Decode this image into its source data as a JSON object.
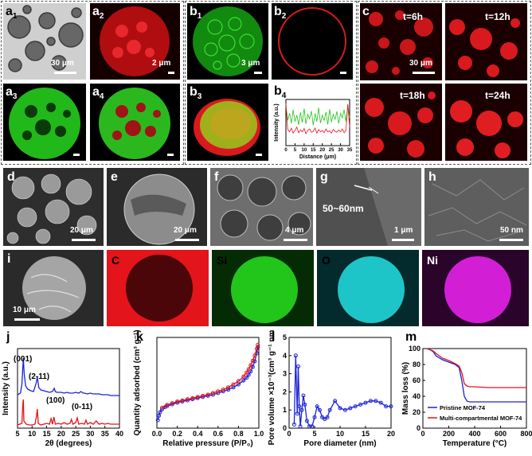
{
  "panels": {
    "a1": {
      "label": "a",
      "sub": "1",
      "scale": "30 μm"
    },
    "a2": {
      "label": "a",
      "sub": "2",
      "scale": "2 μm"
    },
    "a3": {
      "label": "a",
      "sub": "3"
    },
    "a4": {
      "label": "a",
      "sub": "4"
    },
    "b1": {
      "label": "b",
      "sub": "1",
      "scale": "3 μm"
    },
    "b2": {
      "label": "b",
      "sub": "2"
    },
    "b3": {
      "label": "b",
      "sub": "3"
    },
    "b4": {
      "label": "b",
      "sub": "4"
    },
    "c": {
      "label": "c",
      "scale": "30 μm",
      "times": [
        "t=6h",
        "t=12h",
        "t=18h",
        "t=24h"
      ]
    },
    "d": {
      "label": "d",
      "scale": "20 μm"
    },
    "e": {
      "label": "e",
      "scale": "20 μm"
    },
    "f": {
      "label": "f",
      "scale": "4 μm"
    },
    "g": {
      "label": "g",
      "scale": "1 μm",
      "annotation": "50~60nm"
    },
    "h": {
      "label": "h",
      "scale": "50 nm"
    },
    "i": {
      "label": "i",
      "scale": "10 μm"
    },
    "eds": [
      {
        "element": "C",
        "color": "#e3141a",
        "bg": "#3a0505",
        "text_color": "#000000"
      },
      {
        "element": "Si",
        "color": "#22c51a",
        "bg": "#042b04",
        "text_color": "#000000"
      },
      {
        "element": "O",
        "color": "#1ec5c8",
        "bg": "#032a2c",
        "text_color": "#000000"
      },
      {
        "element": "Ni",
        "color": "#d21fd6",
        "bg": "#2a042b",
        "text_color": "#ffffff"
      }
    ],
    "j": {
      "label": "j"
    },
    "k": {
      "label": "k"
    },
    "l": {
      "label": "l"
    },
    "m": {
      "label": "m"
    }
  },
  "chart_data": [
    {
      "id": "b4",
      "type": "line",
      "xlabel": "Distance (μm)",
      "ylabel": "Intensity (a.u.)",
      "xlim": [
        0,
        35
      ],
      "xticks": [
        0,
        5,
        10,
        15,
        20,
        25,
        30,
        35
      ],
      "ylim": [
        0,
        100
      ],
      "series": [
        {
          "color": "#22c51a",
          "x": [
            0,
            1,
            2,
            3,
            4,
            5,
            6,
            7,
            8,
            9,
            10,
            11,
            12,
            13,
            14,
            15,
            16,
            17,
            18,
            19,
            20,
            21,
            22,
            23,
            24,
            25,
            26,
            27,
            28,
            29,
            30,
            31,
            32,
            33,
            34,
            35
          ],
          "y": [
            85,
            55,
            70,
            48,
            78,
            52,
            66,
            45,
            72,
            50,
            80,
            47,
            68,
            58,
            75,
            44,
            70,
            52,
            82,
            49,
            66,
            55,
            73,
            46,
            79,
            51,
            68,
            57,
            74,
            48,
            70,
            60,
            78,
            52,
            88,
            60
          ]
        },
        {
          "color": "#e3141a",
          "x": [
            0,
            1,
            2,
            3,
            4,
            5,
            6,
            7,
            8,
            9,
            10,
            11,
            12,
            13,
            14,
            15,
            16,
            17,
            18,
            19,
            20,
            21,
            22,
            23,
            24,
            25,
            26,
            27,
            28,
            29,
            30,
            31,
            32,
            33,
            34,
            35
          ],
          "y": [
            92,
            35,
            30,
            38,
            27,
            33,
            40,
            28,
            34,
            30,
            37,
            26,
            33,
            36,
            29,
            31,
            38,
            27,
            35,
            30,
            33,
            28,
            36,
            30,
            32,
            27,
            35,
            31,
            29,
            34,
            30,
            36,
            28,
            33,
            90,
            40
          ]
        }
      ]
    },
    {
      "id": "j",
      "type": "line",
      "xlabel": "2θ (degrees)",
      "ylabel": "Intensity (a.u.)",
      "xlim": [
        5,
        40
      ],
      "xticks": [
        5,
        10,
        15,
        20,
        25,
        30,
        35,
        40
      ],
      "ylim": [
        0,
        10
      ],
      "annotations": [
        "(001)",
        "(2-11)",
        "(100)",
        "(0-11)"
      ],
      "series": [
        {
          "color": "#1a23d6",
          "x": [
            5,
            6,
            6.5,
            6.8,
            7,
            7.3,
            7.8,
            8.5,
            9.5,
            10.5,
            11.3,
            11.8,
            12.3,
            13,
            14,
            15,
            16,
            17,
            17.6,
            18,
            18.5,
            19,
            20,
            21,
            22,
            23,
            24,
            25,
            26,
            26.8,
            27.5,
            28,
            29,
            30,
            31,
            32,
            33,
            34,
            35,
            36,
            37,
            38,
            39,
            40
          ],
          "y": [
            4.2,
            4.4,
            5.5,
            7.5,
            8.8,
            6.8,
            5.3,
            4.9,
            4.7,
            4.6,
            5.5,
            6.4,
            5.1,
            4.8,
            4.7,
            4.6,
            4.5,
            4.6,
            5.0,
            4.6,
            4.5,
            4.5,
            4.5,
            4.4,
            4.5,
            4.4,
            4.4,
            4.5,
            4.4,
            4.6,
            4.4,
            4.4,
            4.3,
            4.4,
            4.3,
            4.3,
            4.3,
            4.2,
            4.2,
            4.2,
            4.1,
            4.1,
            4.1,
            4.1
          ]
        },
        {
          "color": "#e3141a",
          "x": [
            5,
            6.5,
            6.8,
            7,
            7.2,
            8,
            9,
            10,
            11,
            11.5,
            11.8,
            12.1,
            13,
            14,
            15,
            16,
            16.5,
            17,
            17.5,
            18,
            19,
            20,
            21,
            22,
            23,
            23.5,
            24,
            25,
            25.5,
            26,
            27,
            28,
            28.5,
            29,
            30,
            31,
            32,
            33,
            34,
            35,
            36,
            37,
            38,
            39,
            40
          ],
          "y": [
            0.4,
            0.6,
            3.0,
            3.6,
            0.9,
            0.5,
            0.4,
            0.4,
            0.5,
            1.5,
            2.4,
            0.6,
            0.4,
            0.5,
            0.6,
            0.5,
            1.2,
            0.5,
            1.4,
            0.5,
            0.6,
            0.5,
            0.7,
            0.5,
            0.6,
            1.1,
            0.5,
            0.7,
            1.3,
            0.5,
            0.6,
            0.5,
            1.0,
            0.5,
            0.7,
            0.5,
            0.9,
            0.5,
            0.6,
            0.5,
            0.6,
            0.5,
            0.5,
            0.5,
            0.5
          ]
        }
      ]
    },
    {
      "id": "k",
      "type": "line",
      "xlabel": "Relative pressure (P/P₀)",
      "ylabel": "Quantity adsorbed (cm³ g⁻¹)",
      "xlim": [
        0,
        1.0
      ],
      "xticks": [
        0.0,
        0.2,
        0.4,
        0.6,
        0.8,
        1.0
      ],
      "ylim": [
        0,
        160
      ],
      "series": [
        {
          "color": "#1a23d6",
          "marker": "circle",
          "x": [
            0.01,
            0.02,
            0.03,
            0.05,
            0.08,
            0.1,
            0.15,
            0.2,
            0.25,
            0.3,
            0.35,
            0.4,
            0.45,
            0.5,
            0.55,
            0.6,
            0.65,
            0.7,
            0.75,
            0.8,
            0.85,
            0.88,
            0.9,
            0.92,
            0.94,
            0.96,
            0.98,
            0.99
          ],
          "y": [
            14,
            22,
            28,
            33,
            37,
            39,
            42,
            45,
            47,
            49,
            51,
            53,
            55,
            57,
            59,
            62,
            65,
            68,
            72,
            77,
            84,
            89,
            94,
            100,
            108,
            118,
            132,
            143
          ]
        },
        {
          "color": "#e3141a",
          "marker": "circle",
          "x": [
            0.99,
            0.98,
            0.96,
            0.94,
            0.92,
            0.9,
            0.88,
            0.85,
            0.8,
            0.75,
            0.7,
            0.65,
            0.6,
            0.55,
            0.5,
            0.45,
            0.4,
            0.35,
            0.3,
            0.25,
            0.2,
            0.15,
            0.1,
            0.05
          ],
          "y": [
            147,
            140,
            128,
            119,
            111,
            104,
            98,
            91,
            83,
            77,
            72,
            68,
            65,
            62,
            59,
            57,
            55,
            53,
            51,
            49,
            47,
            44,
            41,
            36
          ]
        }
      ]
    },
    {
      "id": "l",
      "type": "line",
      "xlabel": "Pore diameter (nm)",
      "ylabel": "Pore volume ×10⁻³(cm³ g⁻¹ nm⁻¹)",
      "xlim": [
        0,
        20
      ],
      "xticks": [
        0,
        5,
        10,
        15,
        20
      ],
      "ylim": [
        0,
        5
      ],
      "yticks": [
        0,
        1,
        2,
        3,
        4,
        5
      ],
      "series": [
        {
          "color": "#1a23d6",
          "marker": "circle",
          "x": [
            1.0,
            1.3,
            1.6,
            1.8,
            2.0,
            2.2,
            2.5,
            2.8,
            3.1,
            3.5,
            4.0,
            4.5,
            5.0,
            5.5,
            6.0,
            6.5,
            7.0,
            7.5,
            8.0,
            9.0,
            10.0,
            11.0,
            12.0,
            13.0,
            14.0,
            15.0,
            16.0,
            17.0,
            18.0,
            19.0,
            20.0
          ],
          "y": [
            0.2,
            4.0,
            0.8,
            3.4,
            1.2,
            0.1,
            1.0,
            1.8,
            1.3,
            0.4,
            0.1,
            0.1,
            0.6,
            1.2,
            1.0,
            0.6,
            0.5,
            0.6,
            1.0,
            1.5,
            1.1,
            1.0,
            1.1,
            1.2,
            1.3,
            1.4,
            1.5,
            1.5,
            1.4,
            1.2,
            1.2
          ]
        }
      ]
    },
    {
      "id": "m",
      "type": "line",
      "xlabel": "Temperature (°C)",
      "ylabel": "Mass loss (%)",
      "xlim": [
        0,
        800
      ],
      "xticks": [
        0,
        200,
        400,
        600,
        800
      ],
      "ylim": [
        0,
        100
      ],
      "yticks": [
        0,
        20,
        40,
        60,
        80,
        100
      ],
      "series": [
        {
          "name": "Pristine MOF-74",
          "color": "#1a23d6",
          "x": [
            25,
            50,
            80,
            100,
            150,
            200,
            250,
            280,
            300,
            320,
            340,
            360,
            400,
            500,
            600,
            700,
            800
          ],
          "y": [
            100,
            99,
            96,
            91,
            86,
            83,
            80,
            76,
            60,
            40,
            34,
            33,
            33,
            33,
            33,
            33,
            33
          ]
        },
        {
          "name": "Multi-compartmental MOF-74",
          "color": "#e3141a",
          "x": [
            25,
            50,
            80,
            100,
            150,
            200,
            250,
            280,
            300,
            320,
            340,
            360,
            400,
            500,
            600,
            700,
            800
          ],
          "y": [
            100,
            99,
            97,
            94,
            88,
            85,
            81,
            78,
            70,
            56,
            53,
            52,
            52,
            51,
            51,
            51,
            51
          ]
        }
      ]
    }
  ]
}
